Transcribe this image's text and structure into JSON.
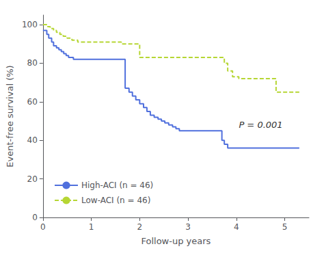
{
  "chart_data": {
    "type": "step",
    "xlabel": "Follow-up years",
    "ylabel": "Event-free survival (%)",
    "series": [
      {
        "name": "High-ACI (n = 46)",
        "line_style": "solid",
        "x": [
          0,
          0.08,
          0.12,
          0.18,
          0.22,
          0.28,
          0.33,
          0.38,
          0.43,
          0.48,
          0.53,
          0.58,
          0.63,
          0.68,
          0.73,
          0.78,
          0.83,
          0.88,
          0.93,
          0.98,
          1.03,
          1.08,
          1.13,
          1.18,
          1.23,
          1.28,
          1.33,
          1.38,
          1.43,
          1.48,
          1.53,
          1.58,
          1.63,
          1.7,
          1.78,
          1.85,
          1.92,
          2.0,
          2.08,
          2.15,
          2.22,
          2.3,
          2.38,
          2.45,
          2.52,
          2.6,
          2.68,
          2.75,
          2.82,
          2.9,
          2.98,
          3.05,
          3.12,
          3.3,
          3.6,
          3.7,
          3.75,
          3.82,
          3.88,
          5.3
        ],
        "values": [
          97,
          95,
          93,
          91,
          89,
          88,
          87,
          86,
          85,
          84,
          83,
          83,
          82,
          82,
          82,
          82,
          82,
          82,
          82,
          82,
          82,
          82,
          82,
          82,
          82,
          82,
          82,
          82,
          82,
          82,
          82,
          82,
          82,
          67,
          65,
          63,
          61,
          59,
          57,
          55,
          53,
          52,
          51,
          50,
          49,
          48,
          47,
          46,
          45,
          45,
          45,
          45,
          45,
          45,
          45,
          40,
          38,
          36,
          36,
          36
        ]
      },
      {
        "name": "Low-ACI (n = 46)",
        "line_style": "dashed",
        "x": [
          0,
          0.05,
          0.1,
          0.15,
          0.22,
          0.28,
          0.35,
          0.42,
          0.5,
          0.6,
          0.72,
          0.88,
          1.0,
          1.5,
          1.62,
          2.0,
          2.12,
          2.5,
          3.0,
          3.2,
          3.5,
          3.75,
          3.82,
          3.92,
          4.05,
          4.15,
          4.5,
          4.82,
          5.0,
          5.1,
          5.3
        ],
        "values": [
          100,
          100,
          99,
          98,
          97,
          96,
          95,
          94,
          93,
          92,
          91,
          91,
          91,
          91,
          90,
          83,
          83,
          83,
          83,
          83,
          83,
          80,
          76,
          73,
          72,
          72,
          72,
          65,
          65,
          65,
          65
        ]
      }
    ],
    "xlim": [
      0,
      5.5
    ],
    "xticks": [
      0,
      1,
      2,
      3,
      4,
      5
    ],
    "ylim": [
      0,
      105
    ],
    "yticks": [
      0,
      20,
      40,
      60,
      80,
      100
    ],
    "grid": false,
    "legend": "lower left",
    "annotations": [
      {
        "text": "P = 0.001",
        "x": 4.05,
        "y": 48
      }
    ]
  }
}
